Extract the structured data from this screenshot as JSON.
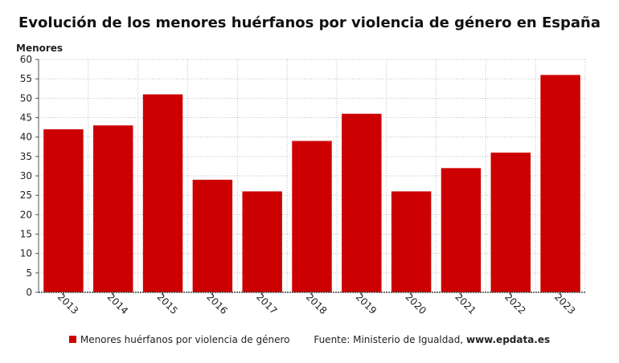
{
  "chart_data": {
    "type": "bar",
    "title": "Evolución de los menores huérfanos por violencia de género en España",
    "ylabel": "Menores",
    "xlabel": "",
    "categories": [
      "2013",
      "2014",
      "2015",
      "2016",
      "2017",
      "2018",
      "2019",
      "2020",
      "2021",
      "2022",
      "2023"
    ],
    "series": [
      {
        "name": "Menores huérfanos por violencia de género",
        "values": [
          42,
          43,
          51,
          29,
          26,
          39,
          46,
          26,
          32,
          36,
          56
        ]
      }
    ],
    "ylim": [
      0,
      60
    ],
    "yticks": [
      0,
      5,
      10,
      15,
      20,
      25,
      30,
      35,
      40,
      45,
      50,
      55,
      60
    ],
    "grid": true,
    "legend_position": "bottom",
    "bar_color": "#cc0000"
  },
  "source": {
    "text": "Fuente: Ministerio de Igualdad,",
    "site": "www.epdata.es"
  }
}
